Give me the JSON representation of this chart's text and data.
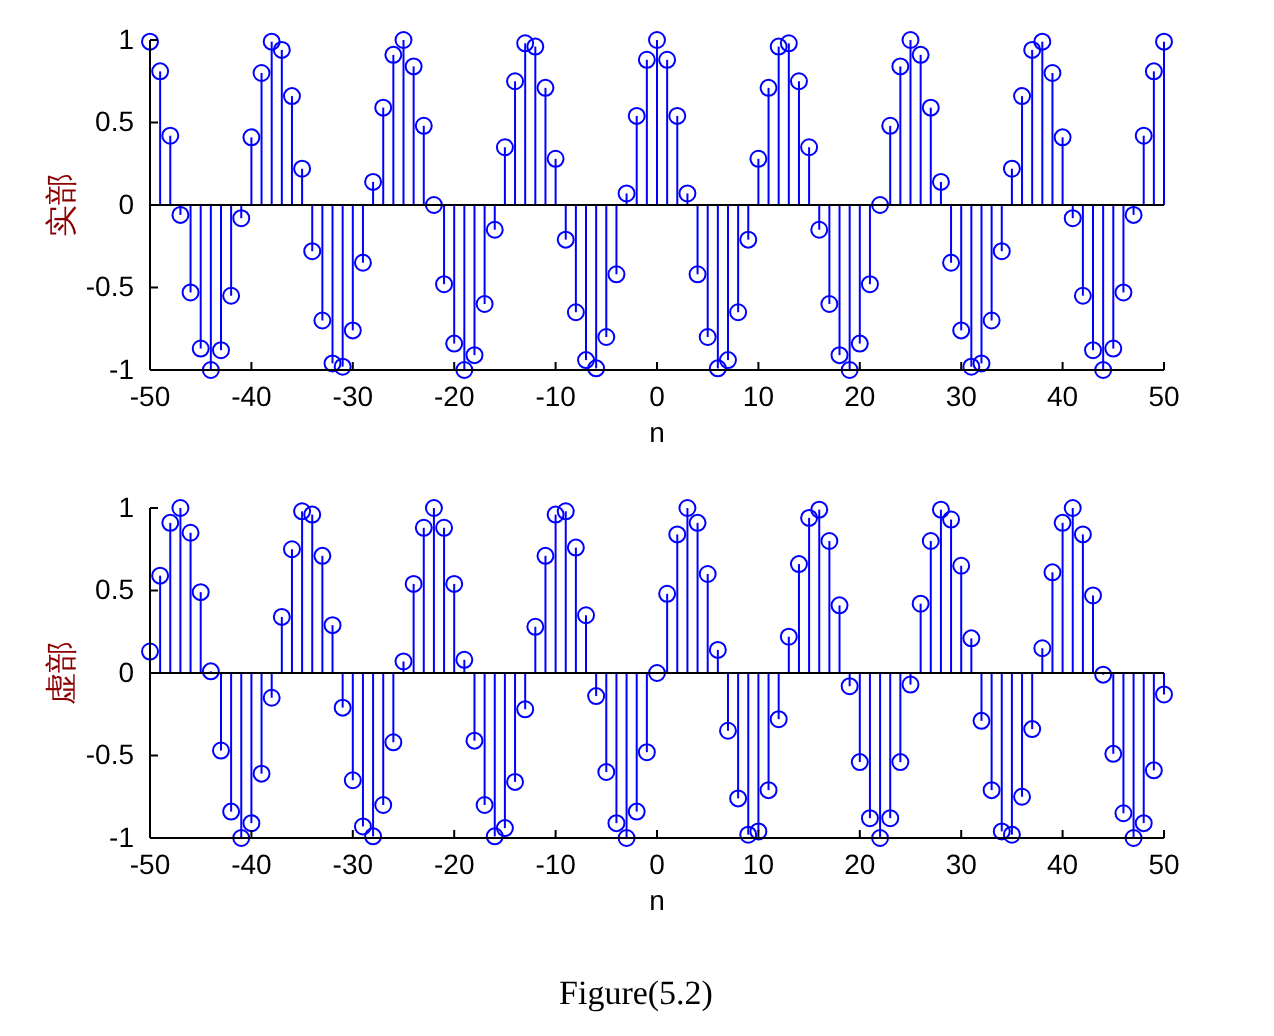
{
  "chart_data": [
    {
      "type": "lollipop",
      "ylabel": "实部",
      "xlabel": "n",
      "xlim": [
        -50,
        50
      ],
      "xticks": [
        -50,
        -40,
        -30,
        -20,
        -10,
        0,
        10,
        20,
        30,
        40,
        50
      ],
      "ylim": [
        -1,
        1
      ],
      "yticks": [
        -1,
        -0.5,
        0,
        0.5,
        1
      ],
      "marker": "circle",
      "x": [
        -50,
        -49,
        -48,
        -47,
        -46,
        -45,
        -44,
        -43,
        -42,
        -41,
        -40,
        -39,
        -38,
        -37,
        -36,
        -35,
        -34,
        -33,
        -32,
        -31,
        -30,
        -29,
        -28,
        -27,
        -26,
        -25,
        -24,
        -23,
        -22,
        -21,
        -20,
        -19,
        -18,
        -17,
        -16,
        -15,
        -14,
        -13,
        -12,
        -11,
        -10,
        -9,
        -8,
        -7,
        -6,
        -5,
        -4,
        -3,
        -2,
        -1,
        0,
        1,
        2,
        3,
        4,
        5,
        6,
        7,
        8,
        9,
        10,
        11,
        12,
        13,
        14,
        15,
        16,
        17,
        18,
        19,
        20,
        21,
        22,
        23,
        24,
        25,
        26,
        27,
        28,
        29,
        30,
        31,
        32,
        33,
        34,
        35,
        36,
        37,
        38,
        39,
        40,
        41,
        42,
        43,
        44,
        45,
        46,
        47,
        48,
        49,
        50
      ],
      "series": [
        {
          "color": "#0000ff",
          "values": [
            0.99,
            0.81,
            0.42,
            -0.06,
            -0.53,
            -0.87,
            -1.0,
            -0.88,
            -0.55,
            -0.08,
            0.41,
            0.8,
            0.99,
            0.94,
            0.66,
            0.22,
            -0.28,
            -0.7,
            -0.96,
            -0.98,
            -0.76,
            -0.35,
            0.14,
            0.59,
            0.91,
            1.0,
            0.84,
            0.48,
            0,
            -0.48,
            -0.84,
            -1.0,
            -0.91,
            -0.6,
            -0.15,
            0.35,
            0.75,
            0.98,
            0.96,
            0.71,
            0.28,
            -0.21,
            -0.65,
            -0.94,
            -0.99,
            -0.8,
            -0.42,
            0.07,
            0.54,
            0.88,
            1,
            0.88,
            0.54,
            0.07,
            -0.42,
            -0.8,
            -0.99,
            -0.94,
            -0.65,
            -0.21,
            0.28,
            0.71,
            0.96,
            0.98,
            0.75,
            0.35,
            -0.15,
            -0.6,
            -0.91,
            -1.0,
            -0.84,
            -0.48,
            0,
            0.48,
            0.84,
            1.0,
            0.91,
            0.59,
            0.14,
            -0.35,
            -0.76,
            -0.98,
            -0.96,
            -0.7,
            -0.28,
            0.22,
            0.66,
            0.94,
            0.99,
            0.8,
            0.41,
            -0.08,
            -0.55,
            -0.88,
            -1.0,
            -0.87,
            -0.53,
            -0.06,
            0.42,
            0.81,
            0.99
          ]
        }
      ]
    },
    {
      "type": "lollipop",
      "ylabel": "虚部",
      "xlabel": "n",
      "xlim": [
        -50,
        50
      ],
      "xticks": [
        -50,
        -40,
        -30,
        -20,
        -10,
        0,
        10,
        20,
        30,
        40,
        50
      ],
      "ylim": [
        -1,
        1
      ],
      "yticks": [
        -1,
        -0.5,
        0,
        0.5,
        1
      ],
      "marker": "circle",
      "annotations": [
        "Figure(5.2)"
      ],
      "x": [
        -50,
        -49,
        -48,
        -47,
        -46,
        -45,
        -44,
        -43,
        -42,
        -41,
        -40,
        -39,
        -38,
        -37,
        -36,
        -35,
        -34,
        -33,
        -32,
        -31,
        -30,
        -29,
        -28,
        -27,
        -26,
        -25,
        -24,
        -23,
        -22,
        -21,
        -20,
        -19,
        -18,
        -17,
        -16,
        -15,
        -14,
        -13,
        -12,
        -11,
        -10,
        -9,
        -8,
        -7,
        -6,
        -5,
        -4,
        -3,
        -2,
        -1,
        0,
        1,
        2,
        3,
        4,
        5,
        6,
        7,
        8,
        9,
        10,
        11,
        12,
        13,
        14,
        15,
        16,
        17,
        18,
        19,
        20,
        21,
        22,
        23,
        24,
        25,
        26,
        27,
        28,
        29,
        30,
        31,
        32,
        33,
        34,
        35,
        36,
        37,
        38,
        39,
        40,
        41,
        42,
        43,
        44,
        45,
        46,
        47,
        48,
        49,
        50
      ],
      "series": [
        {
          "color": "#0000ff",
          "values": [
            0.13,
            0.59,
            0.91,
            1.0,
            0.85,
            0.49,
            0.01,
            -0.47,
            -0.84,
            -1.0,
            -0.91,
            -0.61,
            -0.15,
            0.34,
            0.75,
            0.98,
            0.96,
            0.71,
            0.29,
            -0.21,
            -0.65,
            -0.93,
            -0.99,
            -0.8,
            -0.42,
            0.07,
            0.54,
            0.88,
            1.0,
            0.88,
            0.54,
            0.08,
            -0.41,
            -0.8,
            -0.99,
            -0.94,
            -0.66,
            -0.22,
            0.28,
            0.71,
            0.96,
            0.98,
            0.76,
            0.35,
            -0.14,
            -0.6,
            -0.91,
            -1.0,
            -0.84,
            -0.48,
            0,
            0.48,
            0.84,
            1.0,
            0.91,
            0.6,
            0.14,
            -0.35,
            -0.76,
            -0.98,
            -0.96,
            -0.71,
            -0.28,
            0.22,
            0.66,
            0.94,
            0.99,
            0.8,
            0.41,
            -0.08,
            -0.54,
            -0.88,
            -1.0,
            -0.88,
            -0.54,
            -0.07,
            0.42,
            0.8,
            0.99,
            0.93,
            0.65,
            0.21,
            -0.29,
            -0.71,
            -0.96,
            -0.98,
            -0.75,
            -0.34,
            0.15,
            0.61,
            0.91,
            1.0,
            0.84,
            0.47,
            -0.01,
            -0.49,
            -0.85,
            -1.0,
            -0.91,
            -0.59,
            -0.13
          ]
        }
      ]
    }
  ]
}
